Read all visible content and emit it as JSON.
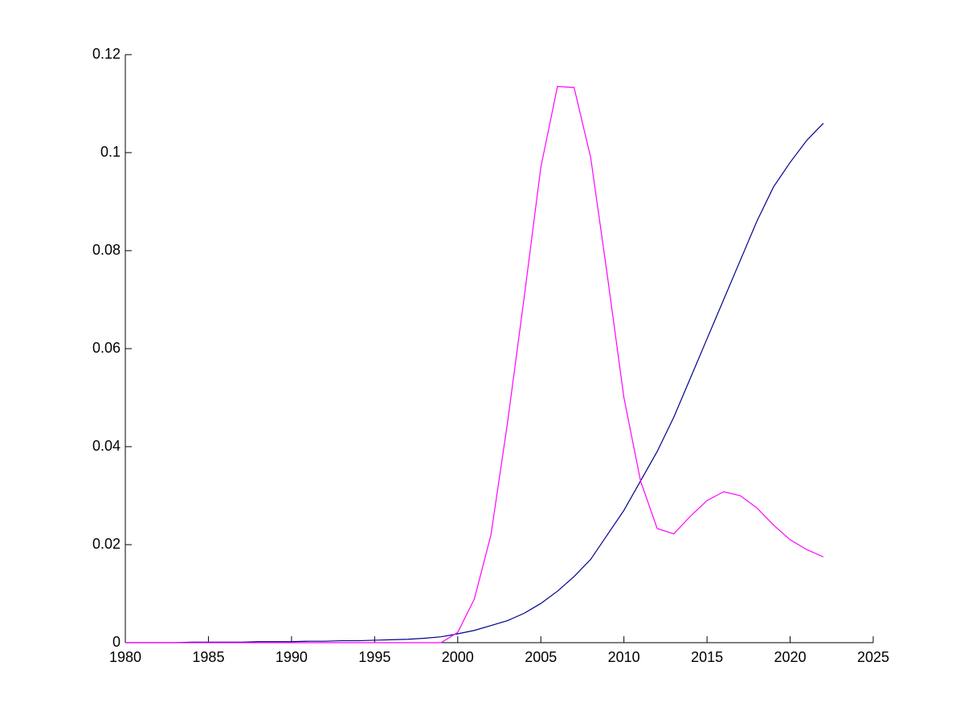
{
  "chart_data": {
    "type": "line",
    "x": [
      1980,
      1981,
      1982,
      1983,
      1984,
      1985,
      1986,
      1987,
      1988,
      1989,
      1990,
      1991,
      1992,
      1993,
      1994,
      1995,
      1996,
      1997,
      1998,
      1999,
      2000,
      2001,
      2002,
      2003,
      2004,
      2005,
      2006,
      2007,
      2008,
      2009,
      2010,
      2011,
      2012,
      2013,
      2014,
      2015,
      2016,
      2017,
      2018,
      2019,
      2020,
      2021,
      2022
    ],
    "series": [
      {
        "color": "#00008b",
        "values": [
          0,
          0,
          0,
          0,
          0.0001,
          0.0001,
          0.0001,
          0.0001,
          0.0002,
          0.0002,
          0.0002,
          0.0003,
          0.0003,
          0.0004,
          0.0004,
          0.0005,
          0.0006,
          0.0007,
          0.0009,
          0.0012,
          0.0018,
          0.0025,
          0.0035,
          0.0045,
          0.006,
          0.008,
          0.0105,
          0.0135,
          0.017,
          0.022,
          0.027,
          0.033,
          0.039,
          0.046,
          0.054,
          0.062,
          0.07,
          0.078,
          0.086,
          0.093,
          0.098,
          0.1025,
          0.106
        ]
      },
      {
        "color": "#ff00ff",
        "values": [
          0,
          0,
          0,
          0,
          0,
          0,
          0,
          0,
          0,
          0,
          0,
          0,
          0,
          0,
          0,
          0,
          0,
          0,
          0,
          0,
          0.0021,
          0.0089,
          0.022,
          0.045,
          0.0705,
          0.097,
          0.1135,
          0.1133,
          0.099,
          0.075,
          0.05,
          0.033,
          0.0233,
          0.0222,
          0.0258,
          0.029,
          0.0308,
          0.03,
          0.0275,
          0.024,
          0.021,
          0.019,
          0.0175
        ]
      }
    ],
    "xlim": [
      1980,
      2025
    ],
    "xticks": [
      1980,
      1985,
      1990,
      1995,
      2000,
      2005,
      2010,
      2015,
      2020,
      2025
    ],
    "ylim": [
      0,
      0.12
    ],
    "yticks": [
      0,
      0.02,
      0.04,
      0.06,
      0.08,
      0.1,
      0.12
    ]
  }
}
